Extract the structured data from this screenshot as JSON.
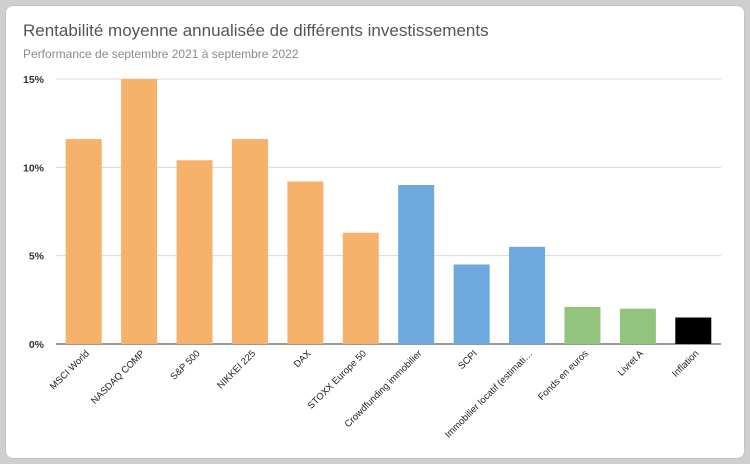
{
  "chart_data": {
    "type": "bar",
    "title": "Rentabilité moyenne annualisée de différents investissements",
    "subtitle": "Performance de septembre 2021 à septembre 2022",
    "xlabel": "",
    "ylabel": "",
    "ylim": [
      0,
      15
    ],
    "yticks": [
      0,
      5,
      10,
      15
    ],
    "ytick_labels": [
      "0%",
      "5%",
      "10%",
      "15%"
    ],
    "grid": true,
    "legend": "none",
    "categories": [
      "MSCI World",
      "NASDAQ COMP",
      "S&P 500",
      "NIKKEI 225",
      "DAX",
      "STOXX Europe 50",
      "Crowdfunding immobilier",
      "SCPI",
      "Immobilier locatif (estimati…",
      "Fonds en euros",
      "Livret A",
      "Inflation"
    ],
    "values": [
      11.6,
      15.0,
      10.4,
      11.6,
      9.2,
      6.3,
      9.0,
      4.5,
      5.5,
      2.1,
      2.0,
      1.5
    ],
    "colors": [
      "#f6b26b",
      "#f6b26b",
      "#f6b26b",
      "#f6b26b",
      "#f6b26b",
      "#f6b26b",
      "#6fa8dc",
      "#6fa8dc",
      "#6fa8dc",
      "#93c47d",
      "#93c47d",
      "#000000"
    ]
  }
}
